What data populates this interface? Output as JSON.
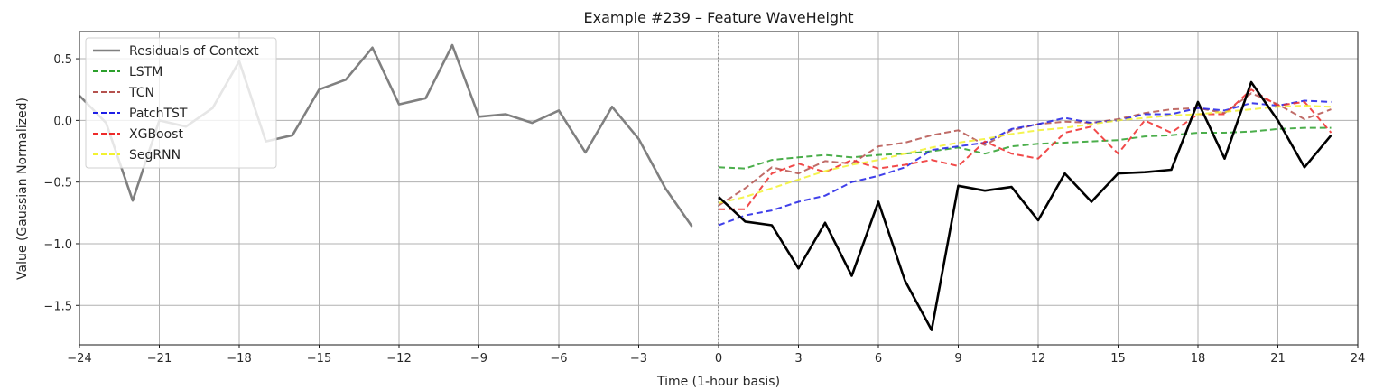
{
  "chart_data": {
    "type": "line",
    "title": "Example #239 – Feature WaveHeight",
    "xlabel": "Time (1-hour basis)",
    "ylabel": "Value (Gaussian Normalized)",
    "xlim": [
      -24,
      24
    ],
    "ylim": [
      -1.82,
      0.72
    ],
    "xticks": [
      -24,
      -21,
      -18,
      -15,
      -12,
      -9,
      -6,
      -3,
      0,
      3,
      6,
      9,
      12,
      15,
      18,
      21,
      24
    ],
    "xtick_labels": [
      "−24",
      "−21",
      "−18",
      "−15",
      "−12",
      "−9",
      "−6",
      "−3",
      "0",
      "3",
      "6",
      "9",
      "12",
      "15",
      "18",
      "21",
      "24"
    ],
    "yticks": [
      0.5,
      0.0,
      -0.5,
      -1.0,
      -1.5
    ],
    "ytick_labels": [
      "0.5",
      "0.0",
      "−0.5",
      "−1.0",
      "−1.5"
    ],
    "grid": true,
    "legend_position": "top-left",
    "vline_x": 0,
    "series": [
      {
        "name": "Residuals of Context",
        "color": "#808080",
        "style": "solid",
        "x": [
          -24,
          -23,
          -22,
          -21,
          -20,
          -19,
          -18,
          -17,
          -16,
          -15,
          -14,
          -13,
          -12,
          -11,
          -10,
          -9,
          -8,
          -7,
          -6,
          -5,
          -4,
          -3,
          -2,
          -1
        ],
        "values": [
          0.2,
          -0.02,
          -0.65,
          0.0,
          -0.05,
          0.1,
          0.48,
          -0.17,
          -0.12,
          0.25,
          0.33,
          0.59,
          0.13,
          0.18,
          0.61,
          0.03,
          0.05,
          -0.02,
          0.08,
          -0.26,
          0.11,
          -0.15,
          -0.55,
          -0.86
        ]
      },
      {
        "name": "",
        "color": "#000000",
        "style": "solid",
        "x": [
          0,
          1,
          2,
          3,
          4,
          5,
          6,
          7,
          8,
          9,
          10,
          11,
          12,
          13,
          14,
          15,
          16,
          17,
          18,
          19,
          20,
          21,
          22,
          23
        ],
        "values": [
          -0.62,
          -0.82,
          -0.85,
          -1.2,
          -0.83,
          -1.26,
          -0.66,
          -1.3,
          -1.7,
          -0.53,
          -0.57,
          -0.54,
          -0.81,
          -0.43,
          -0.66,
          -0.43,
          -0.42,
          -0.4,
          0.15,
          -0.31,
          0.31,
          0.0,
          -0.38,
          -0.12
        ]
      },
      {
        "name": "LSTM",
        "color": "#2ca02c",
        "style": "dashed",
        "x": [
          0,
          1,
          2,
          3,
          4,
          5,
          6,
          7,
          8,
          9,
          10,
          11,
          12,
          13,
          14,
          15,
          16,
          17,
          18,
          19,
          20,
          21,
          22,
          23
        ],
        "values": [
          -0.38,
          -0.39,
          -0.32,
          -0.3,
          -0.28,
          -0.3,
          -0.28,
          -0.27,
          -0.25,
          -0.22,
          -0.27,
          -0.21,
          -0.19,
          -0.18,
          -0.17,
          -0.16,
          -0.13,
          -0.12,
          -0.1,
          -0.1,
          -0.09,
          -0.07,
          -0.06,
          -0.06
        ]
      },
      {
        "name": "TCN",
        "color": "#b5524e",
        "style": "dashed",
        "x": [
          0,
          1,
          2,
          3,
          4,
          5,
          6,
          7,
          8,
          9,
          10,
          11,
          12,
          13,
          14,
          15,
          16,
          17,
          18,
          19,
          20,
          21,
          22,
          23
        ],
        "values": [
          -0.69,
          -0.55,
          -0.38,
          -0.43,
          -0.33,
          -0.35,
          -0.21,
          -0.18,
          -0.12,
          -0.08,
          -0.2,
          -0.08,
          -0.03,
          -0.01,
          -0.02,
          0.01,
          0.06,
          0.09,
          0.1,
          0.06,
          0.22,
          0.13,
          0.01,
          0.09
        ]
      },
      {
        "name": "PatchTST",
        "color": "#1f1fe6",
        "style": "dashed",
        "x": [
          0,
          1,
          2,
          3,
          4,
          5,
          6,
          7,
          8,
          9,
          10,
          11,
          12,
          13,
          14,
          15,
          16,
          17,
          18,
          19,
          20,
          21,
          22,
          23
        ],
        "values": [
          -0.85,
          -0.77,
          -0.73,
          -0.66,
          -0.61,
          -0.5,
          -0.45,
          -0.38,
          -0.24,
          -0.21,
          -0.18,
          -0.07,
          -0.03,
          0.02,
          -0.02,
          0.0,
          0.05,
          0.05,
          0.1,
          0.08,
          0.14,
          0.12,
          0.16,
          0.15
        ]
      },
      {
        "name": "XGBoost",
        "color": "#ee2a2a",
        "style": "dashed",
        "x": [
          0,
          1,
          2,
          3,
          4,
          5,
          6,
          7,
          8,
          9,
          10,
          11,
          12,
          13,
          14,
          15,
          16,
          17,
          18,
          19,
          20,
          21,
          22,
          23
        ],
        "values": [
          -0.72,
          -0.72,
          -0.43,
          -0.35,
          -0.42,
          -0.32,
          -0.39,
          -0.36,
          -0.32,
          -0.37,
          -0.17,
          -0.27,
          -0.31,
          -0.1,
          -0.05,
          -0.27,
          0.0,
          -0.1,
          0.05,
          0.05,
          0.25,
          0.12,
          0.15,
          -0.1
        ]
      },
      {
        "name": "SegRNN",
        "color": "#f2f230",
        "style": "dashed",
        "x": [
          0,
          1,
          2,
          3,
          4,
          5,
          6,
          7,
          8,
          9,
          10,
          11,
          12,
          13,
          14,
          15,
          16,
          17,
          18,
          19,
          20,
          21,
          22,
          23
        ],
        "values": [
          -0.67,
          -0.62,
          -0.55,
          -0.48,
          -0.41,
          -0.36,
          -0.32,
          -0.27,
          -0.22,
          -0.18,
          -0.15,
          -0.11,
          -0.08,
          -0.06,
          -0.03,
          0.0,
          0.02,
          0.04,
          0.05,
          0.07,
          0.09,
          0.11,
          0.12,
          0.11
        ]
      }
    ]
  }
}
